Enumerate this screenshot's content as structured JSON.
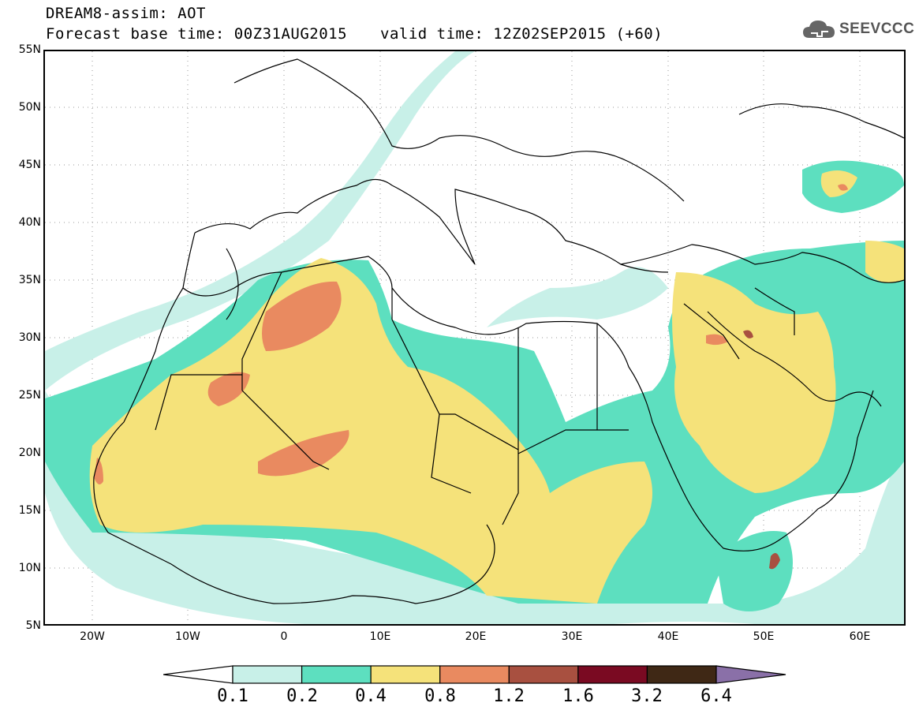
{
  "header": {
    "title_line1": "DREAM8-assim: AOT",
    "base_time": "Forecast base time: 00Z31AUG2015",
    "valid_time": "valid time: 12Z02SEP2015 (+60)",
    "logo_text": "SEEVCCC",
    "logo_icon": "cloud-icon"
  },
  "axes": {
    "lat_labels": [
      "55N",
      "50N",
      "45N",
      "40N",
      "35N",
      "30N",
      "25N",
      "20N",
      "15N",
      "10N",
      "5N"
    ],
    "lon_labels": [
      "20W",
      "10W",
      "0",
      "10E",
      "20E",
      "30E",
      "40E",
      "50E",
      "60E"
    ]
  },
  "legend": {
    "colors": [
      "#c8f0e8",
      "#5ddfbf",
      "#f5e27a",
      "#e98a60",
      "#a85040",
      "#7a0a22",
      "#3f2815"
    ],
    "under_color": "#ffffff",
    "over_color": "#8a70a8",
    "labels": [
      "0.1",
      "0.2",
      "0.4",
      "0.8",
      "1.2",
      "1.6",
      "3.2",
      "6.4"
    ]
  }
}
